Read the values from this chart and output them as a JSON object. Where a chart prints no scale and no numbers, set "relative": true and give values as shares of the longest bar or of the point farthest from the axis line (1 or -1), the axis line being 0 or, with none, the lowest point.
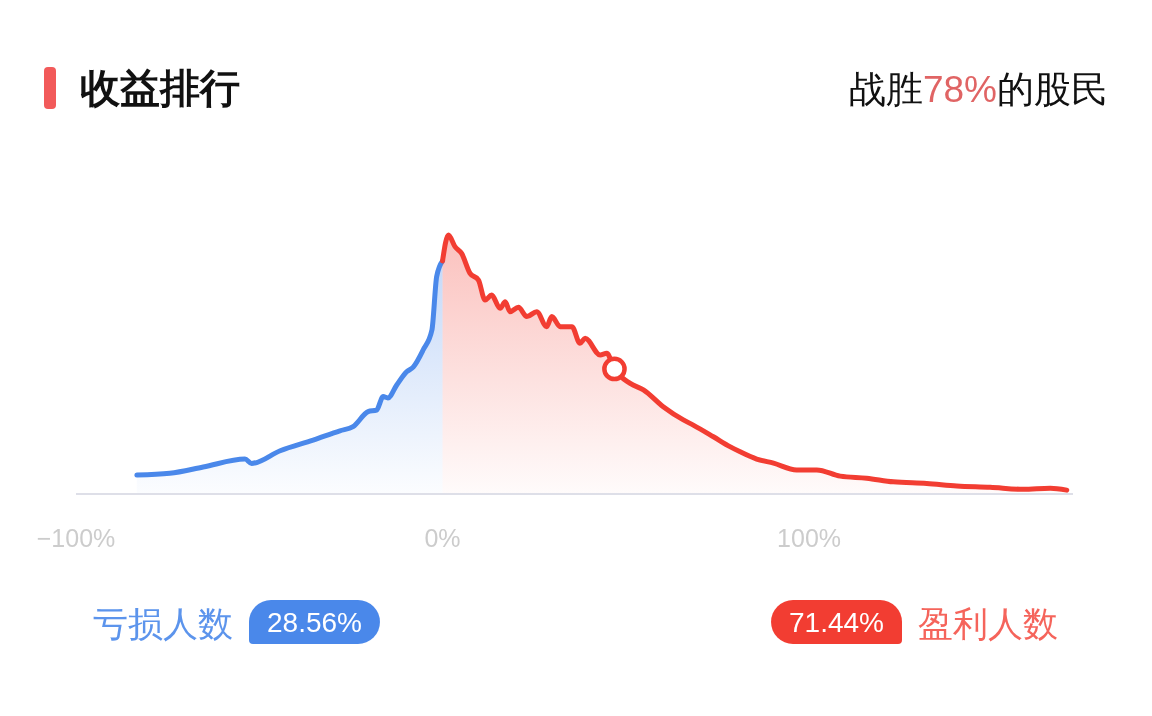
{
  "chart_data": {
    "type": "area",
    "title": "收益排行",
    "subtitle": "战胜78%的股民",
    "relative": true,
    "xlim": [
      -100,
      172
    ],
    "xticks": [
      {
        "value": -100,
        "label": "−100%"
      },
      {
        "value": 0,
        "label": "0%"
      },
      {
        "value": 100,
        "label": "100%"
      }
    ],
    "series": [
      {
        "color": "#4a88ea",
        "x": [
          -83.4,
          -74.4,
          -65.3,
          -53.9,
          -52.1,
          -44.3,
          -35.3,
          -28.0,
          -24.4,
          -20.3,
          -18.0,
          -16.2,
          -14.9,
          -12.5,
          -9.8,
          -8.0,
          -5.3,
          -2.9,
          -1.6,
          0
        ],
        "values": [
          0.073,
          0.08,
          0.104,
          0.135,
          0.118,
          0.167,
          0.208,
          0.244,
          0.26,
          0.318,
          0.324,
          0.376,
          0.371,
          0.421,
          0.472,
          0.49,
          0.556,
          0.633,
          0.84,
          0.9
        ]
      },
      {
        "color": "#f23d32",
        "x": [
          0,
          1.6,
          3.4,
          5.2,
          7.5,
          9.8,
          11.6,
          13.4,
          15.7,
          17.1,
          18.4,
          20.7,
          23.0,
          25.7,
          28.4,
          29.8,
          32.1,
          35.3,
          37.5,
          38.9,
          43.0,
          44.8,
          46.9,
          51.2,
          54.8,
          60.2,
          65.7,
          68.4,
          73.9,
          78.4,
          81.2,
          85.7,
          90.3,
          96.6,
          102.1,
          108.5,
          115.7,
          123.0,
          132.1,
          140.3,
          149.4,
          158.4,
          165.8,
          170.3
        ],
        "values": [
          0.9,
          1.0,
          0.955,
          0.929,
          0.852,
          0.826,
          0.749,
          0.768,
          0.717,
          0.742,
          0.704,
          0.721,
          0.685,
          0.704,
          0.646,
          0.685,
          0.646,
          0.646,
          0.582,
          0.601,
          0.537,
          0.543,
          0.483,
          0.427,
          0.402,
          0.337,
          0.286,
          0.266,
          0.221,
          0.183,
          0.163,
          0.135,
          0.119,
          0.093,
          0.093,
          0.069,
          0.061,
          0.047,
          0.041,
          0.031,
          0.026,
          0.018,
          0.022,
          0.015
        ]
      },
      {
        "type": "scatter",
        "marker": "circle",
        "color": "#f23d32",
        "x": [
          46.9
        ],
        "values": [
          0.483
        ]
      }
    ],
    "annotations": [
      "亏损人数",
      "28.56%",
      "71.44%",
      "盈利人数"
    ]
  }
}
